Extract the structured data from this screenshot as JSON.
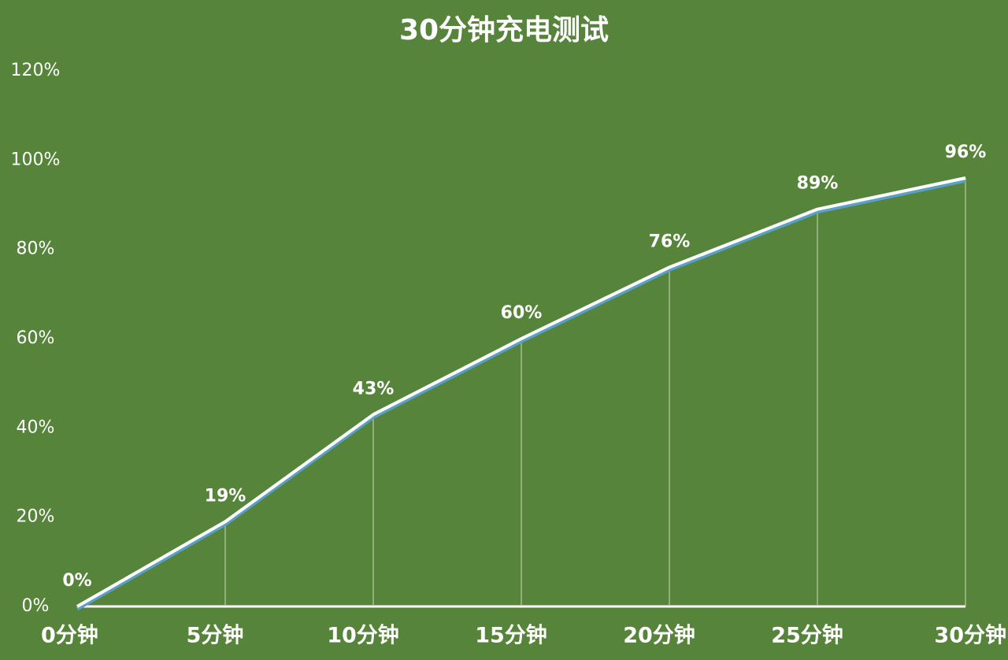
{
  "chart_data": {
    "type": "line",
    "title": "30分钟充电测试",
    "categories": [
      "0分钟",
      "5分钟",
      "10分钟",
      "15分钟",
      "20分钟",
      "25分钟",
      "30分钟"
    ],
    "values": [
      0,
      19,
      43,
      60,
      76,
      89,
      96
    ],
    "value_labels": [
      "0%",
      "19%",
      "43%",
      "60%",
      "76%",
      "89%",
      "96%"
    ],
    "color": "#ffffff",
    "ylim": [
      0,
      120
    ],
    "yticks": [
      {
        "value": 0,
        "label": "0%"
      },
      {
        "value": 20,
        "label": "20%"
      },
      {
        "value": 40,
        "label": "40%"
      },
      {
        "value": 60,
        "label": "60%"
      },
      {
        "value": 80,
        "label": "80%"
      },
      {
        "value": 100,
        "label": "100%"
      },
      {
        "value": 120,
        "label": "120%"
      }
    ]
  }
}
